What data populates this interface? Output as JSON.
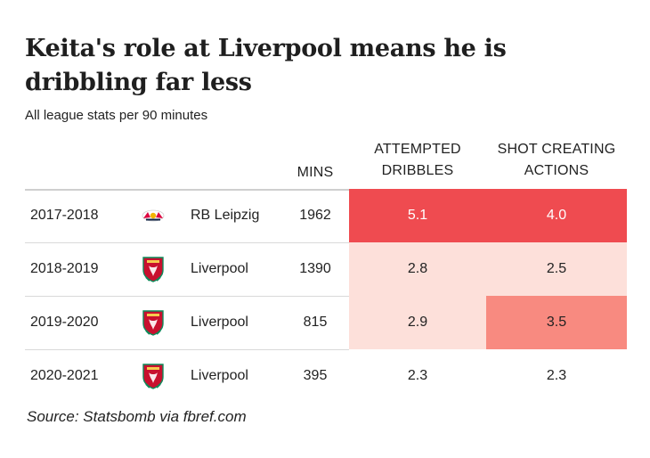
{
  "title": "Keita's role at Liverpool means he is dribbling far less",
  "subtitle": "All league stats per 90 minutes",
  "headers": {
    "mins": "MINS",
    "dribbles_line1": "ATTEMPTED",
    "dribbles_line2": "DRIBBLES",
    "sca_line1": "SHOT CREATING",
    "sca_line2": "ACTIONS"
  },
  "rows": [
    {
      "season": "2017-2018",
      "club": "RB Leipzig",
      "crest_icon": "rb-leipzig-crest-icon",
      "mins": "1962",
      "dribbles": "5.1",
      "sca": "4.0"
    },
    {
      "season": "2018-2019",
      "club": "Liverpool",
      "crest_icon": "liverpool-crest-icon",
      "mins": "1390",
      "dribbles": "2.8",
      "sca": "2.5"
    },
    {
      "season": "2019-2020",
      "club": "Liverpool",
      "crest_icon": "liverpool-crest-icon",
      "mins": "815",
      "dribbles": "2.9",
      "sca": "3.5"
    },
    {
      "season": "2020-2021",
      "club": "Liverpool",
      "crest_icon": "liverpool-crest-icon",
      "mins": "395",
      "dribbles": "2.3",
      "sca": "2.3"
    }
  ],
  "colors": {
    "heat_high": "#ef4b50",
    "heat_mid": "#f88a80",
    "heat_low": "#fde0da",
    "heat_lowest": "#ffffff",
    "high_text": "#ffffff"
  },
  "source": "Source: Statsbomb via fbref.com",
  "chart_data": {
    "type": "table",
    "title": "Keita's role at Liverpool means he is dribbling far less",
    "subtitle": "All league stats per 90 minutes",
    "columns": [
      "MINS",
      "ATTEMPTED DRIBBLES",
      "SHOT CREATING ACTIONS"
    ],
    "categories": [
      "2017-2018",
      "2018-2019",
      "2019-2020",
      "2020-2021"
    ],
    "clubs": [
      "RB Leipzig",
      "Liverpool",
      "Liverpool",
      "Liverpool"
    ],
    "series": [
      {
        "name": "MINS",
        "values": [
          1962,
          1390,
          815,
          395
        ]
      },
      {
        "name": "ATTEMPTED DRIBBLES",
        "values": [
          5.1,
          2.8,
          2.9,
          2.3
        ]
      },
      {
        "name": "SHOT CREATING ACTIONS",
        "values": [
          4.0,
          2.5,
          3.5,
          2.3
        ]
      }
    ]
  }
}
